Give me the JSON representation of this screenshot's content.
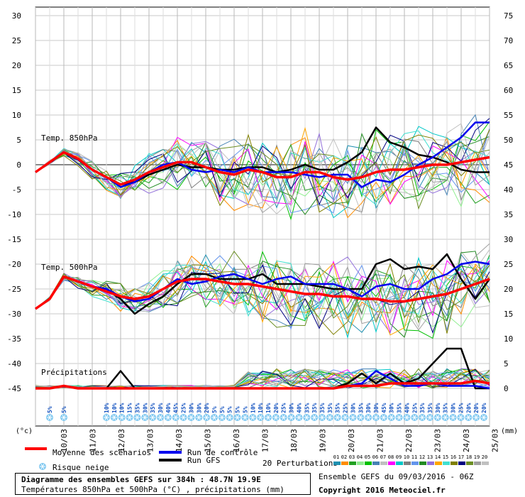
{
  "chart_data": {
    "type": "line",
    "left_axis": {
      "unit": "(°c)",
      "ticks": [
        "30",
        "25",
        "20",
        "15",
        "10",
        "5",
        "0",
        "-5",
        "-10",
        "-15",
        "-20",
        "-25",
        "-30",
        "-35",
        "-40",
        "-45"
      ],
      "ylim": [
        -45,
        30
      ]
    },
    "right_axis": {
      "unit": "(mm)",
      "ticks": [
        "75",
        "70",
        "65",
        "60",
        "55",
        "50",
        "45",
        "40",
        "35",
        "30",
        "25",
        "20",
        "15",
        "10",
        "5",
        "0"
      ],
      "ylim": [
        0,
        75
      ]
    },
    "x_dates": [
      "10/03",
      "11/03",
      "12/03",
      "13/03",
      "14/03",
      "15/03",
      "16/03",
      "17/03",
      "18/03",
      "19/03",
      "20/03",
      "21/03",
      "22/03",
      "23/03",
      "24/03",
      "25/03"
    ],
    "panels": [
      {
        "label": "Temp. 850hPa"
      },
      {
        "label": "Temp. 500hPa"
      },
      {
        "label": "Précipitations"
      }
    ],
    "snow_risk": {
      "early": [
        "5%",
        "5%"
      ],
      "values": [
        "10%",
        "10%",
        "10%",
        "15%",
        "35%",
        "30%",
        "35%",
        "30%",
        "40%",
        "45%",
        "25%",
        "30%",
        "30%",
        "20%",
        "5%",
        "5%",
        "5%",
        "5%",
        "5%",
        "10%",
        "10%",
        "10%",
        "20%",
        "25%",
        "30%",
        "40%",
        "35%",
        "35%",
        "35%",
        "35%",
        "35%",
        "25%",
        "30%",
        "35%",
        "30%",
        "30%",
        "45%",
        "30%",
        "35%",
        "40%",
        "25%",
        "35%",
        "35%",
        "30%",
        "35%",
        "30%",
        "25%",
        "20%",
        "20%",
        "20%"
      ]
    },
    "x_hours": [
      0,
      12,
      24,
      36,
      48,
      60,
      72,
      84,
      96,
      108,
      120,
      132,
      144,
      156,
      168,
      180,
      192,
      204,
      216,
      228,
      240,
      252,
      264,
      276,
      288,
      300,
      312,
      324,
      336,
      348,
      360,
      372,
      384
    ],
    "series": [
      {
        "name": "Moyenne des scénarios",
        "color": "#ff0000",
        "t850": [
          -1.5,
          0.5,
          2.5,
          1.2,
          -1.0,
          -2.5,
          -4.0,
          -3.0,
          -1.5,
          -0.5,
          0.5,
          0.5,
          -0.5,
          -1.5,
          -2.0,
          -1.0,
          -1.5,
          -2.5,
          -2.5,
          -1.5,
          -1.5,
          -2.5,
          -3.0,
          -2.5,
          -1.5,
          -1.0,
          -1.0,
          -0.5,
          0.0,
          0.0,
          0.5,
          1.0,
          1.5
        ],
        "t500": [
          -29,
          -27,
          -22.5,
          -23.5,
          -24.5,
          -25.5,
          -26.5,
          -27,
          -26.5,
          -25,
          -23.5,
          -23,
          -23,
          -23.5,
          -24,
          -24,
          -24.5,
          -25,
          -25.5,
          -26,
          -26,
          -26.5,
          -26.5,
          -27,
          -27,
          -27.5,
          -27.5,
          -27,
          -26.5,
          -26,
          -25,
          -24,
          -23
        ],
        "precip": [
          0,
          0,
          0.5,
          0,
          0,
          0,
          0,
          0,
          0,
          0,
          0,
          0,
          0,
          0,
          0,
          0,
          0,
          0,
          0,
          0,
          0,
          0,
          0.5,
          0.5,
          0.5,
          1,
          1,
          1,
          1,
          1,
          1,
          1.5,
          1
        ]
      },
      {
        "name": "Run de contrôle",
        "color": "#0000ee",
        "t850": [
          -1.5,
          0.5,
          2.5,
          1.0,
          -1.0,
          -2.5,
          -4.5,
          -3.5,
          -1.5,
          0.0,
          0.5,
          -1.0,
          -1.5,
          -1.0,
          -1.5,
          -0.5,
          -1.5,
          -1.5,
          -1.5,
          -2.0,
          -2.5,
          -2.0,
          -2.0,
          -4.5,
          -3.0,
          -3.5,
          -2.0,
          0.0,
          1.5,
          3.5,
          5.5,
          8.5,
          8.5
        ],
        "t500": [
          -29,
          -27,
          -22.5,
          -23.5,
          -24.5,
          -25,
          -26.5,
          -27.5,
          -27,
          -25,
          -23,
          -24,
          -23.5,
          -22.5,
          -22,
          -23,
          -24,
          -23,
          -22.5,
          -24,
          -24,
          -24,
          -25,
          -26.5,
          -24.5,
          -24,
          -25,
          -25,
          -23,
          -22,
          -20,
          -19.5,
          -20
        ],
        "precip": [
          0,
          0,
          0.5,
          0,
          0,
          0,
          0,
          0,
          0,
          0,
          0,
          0,
          0,
          0,
          0,
          0,
          0,
          0,
          0,
          0,
          0,
          0,
          0.5,
          1,
          3.5,
          2,
          0.5,
          0.5,
          1,
          0.5,
          0.5,
          0.5,
          0
        ]
      },
      {
        "name": "Run GFS",
        "color": "#000000",
        "t850": [
          -1.5,
          0.5,
          2.5,
          1.0,
          -1.0,
          -2.5,
          -4.0,
          -3.5,
          -2.0,
          -1.0,
          0.0,
          -0.5,
          -0.5,
          -1.0,
          -1.0,
          -0.5,
          -0.5,
          -1.5,
          -1.0,
          0.0,
          -1.0,
          -1.0,
          0.5,
          2.5,
          7.5,
          4.5,
          3.5,
          2.0,
          1.5,
          0.5,
          -1.0,
          -1.5,
          -1.5
        ],
        "t500": [
          -29,
          -27,
          -22.5,
          -23.5,
          -24.5,
          -25,
          -27,
          -30,
          -28,
          -26.5,
          -24,
          -22,
          -22,
          -23,
          -23,
          -23,
          -22,
          -24,
          -24,
          -24,
          -24.5,
          -25,
          -25,
          -25,
          -20,
          -19,
          -21,
          -20.5,
          -21,
          -18,
          -23,
          -27,
          -23
        ],
        "precip": [
          0,
          0,
          0.5,
          0,
          0,
          0,
          3.5,
          0,
          0,
          0,
          0,
          0,
          0,
          0,
          0,
          0,
          0,
          0,
          0,
          0,
          0,
          0,
          1,
          3,
          1,
          3,
          1,
          2,
          5,
          8,
          8,
          0,
          0
        ]
      }
    ],
    "perturbations": {
      "label": "20 Perturbations",
      "numbers": [
        "01",
        "02",
        "03",
        "04",
        "05",
        "06",
        "07",
        "08",
        "09",
        "10",
        "11",
        "12",
        "13",
        "14",
        "15",
        "16",
        "17",
        "18",
        "19",
        "20"
      ],
      "colors": [
        "#1e90b0",
        "#ff8c00",
        "#20a020",
        "#90ee90",
        "#00c000",
        "#4682b4",
        "#c0c0c0",
        "#ff00ff",
        "#00c8c8",
        "#808080",
        "#6495ed",
        "#228b22",
        "#9370db",
        "#ffa500",
        "#40e0d0",
        "#808000",
        "#000080",
        "#6b8e23",
        "#a0a0a0",
        "#c0c0c0"
      ]
    },
    "legend": {
      "mean": "Moyenne des scénarios",
      "control": "Run de contrôle",
      "gfs": "Run GFS",
      "snow": "Risque neige"
    }
  },
  "footer": {
    "title": "Diagramme des ensembles GEFS sur 384h : 48.7N 19.9E",
    "subtitle": "Températures 850hPa et 500hPa (°C) , précipitations (mm)",
    "run": "Ensemble GEFS du 09/03/2016 - 06Z",
    "copyright": "Copyright 2016 Meteociel.fr"
  }
}
